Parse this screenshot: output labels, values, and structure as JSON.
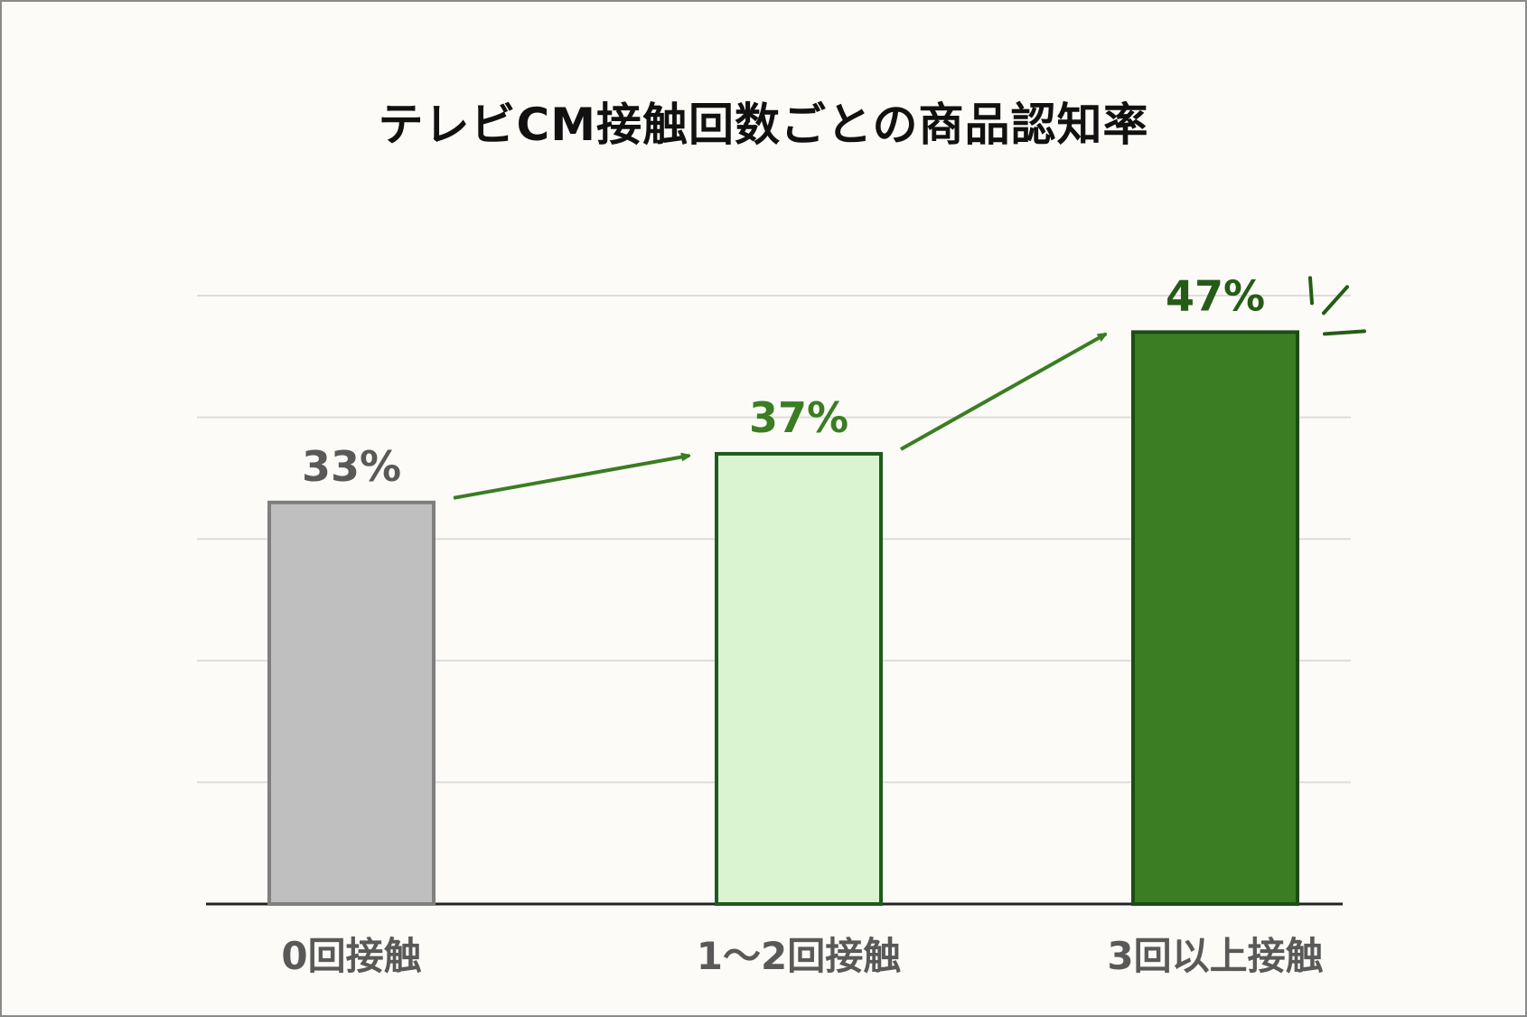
{
  "chart_data": {
    "type": "bar",
    "title": "テレビCM接触回数ごとの商品認知率",
    "xlabel": "",
    "ylabel": "",
    "categories": [
      "0回接触",
      "1～2回接触",
      "3回以上接触"
    ],
    "values": [
      33,
      37,
      47
    ],
    "value_labels": [
      "33%",
      "37%",
      "47%"
    ],
    "ylim": [
      0,
      50
    ],
    "grid": true,
    "legend": "none"
  },
  "colors": {
    "background": "#fcfbf7",
    "gridline": "#dcdcdc",
    "axis": "#222222",
    "bars": [
      {
        "fill": "#bfbfbf",
        "stroke": "#7f7f7f",
        "label": "#595959"
      },
      {
        "fill": "#daf3d1",
        "stroke": "#1f5a1f",
        "label": "#3a7d23"
      },
      {
        "fill": "#3a7d23",
        "stroke": "#1c4d14",
        "label": "#245c17"
      }
    ],
    "arrow": "#3a7d23",
    "emphasis": "#245c17",
    "category_label": "#595959"
  }
}
